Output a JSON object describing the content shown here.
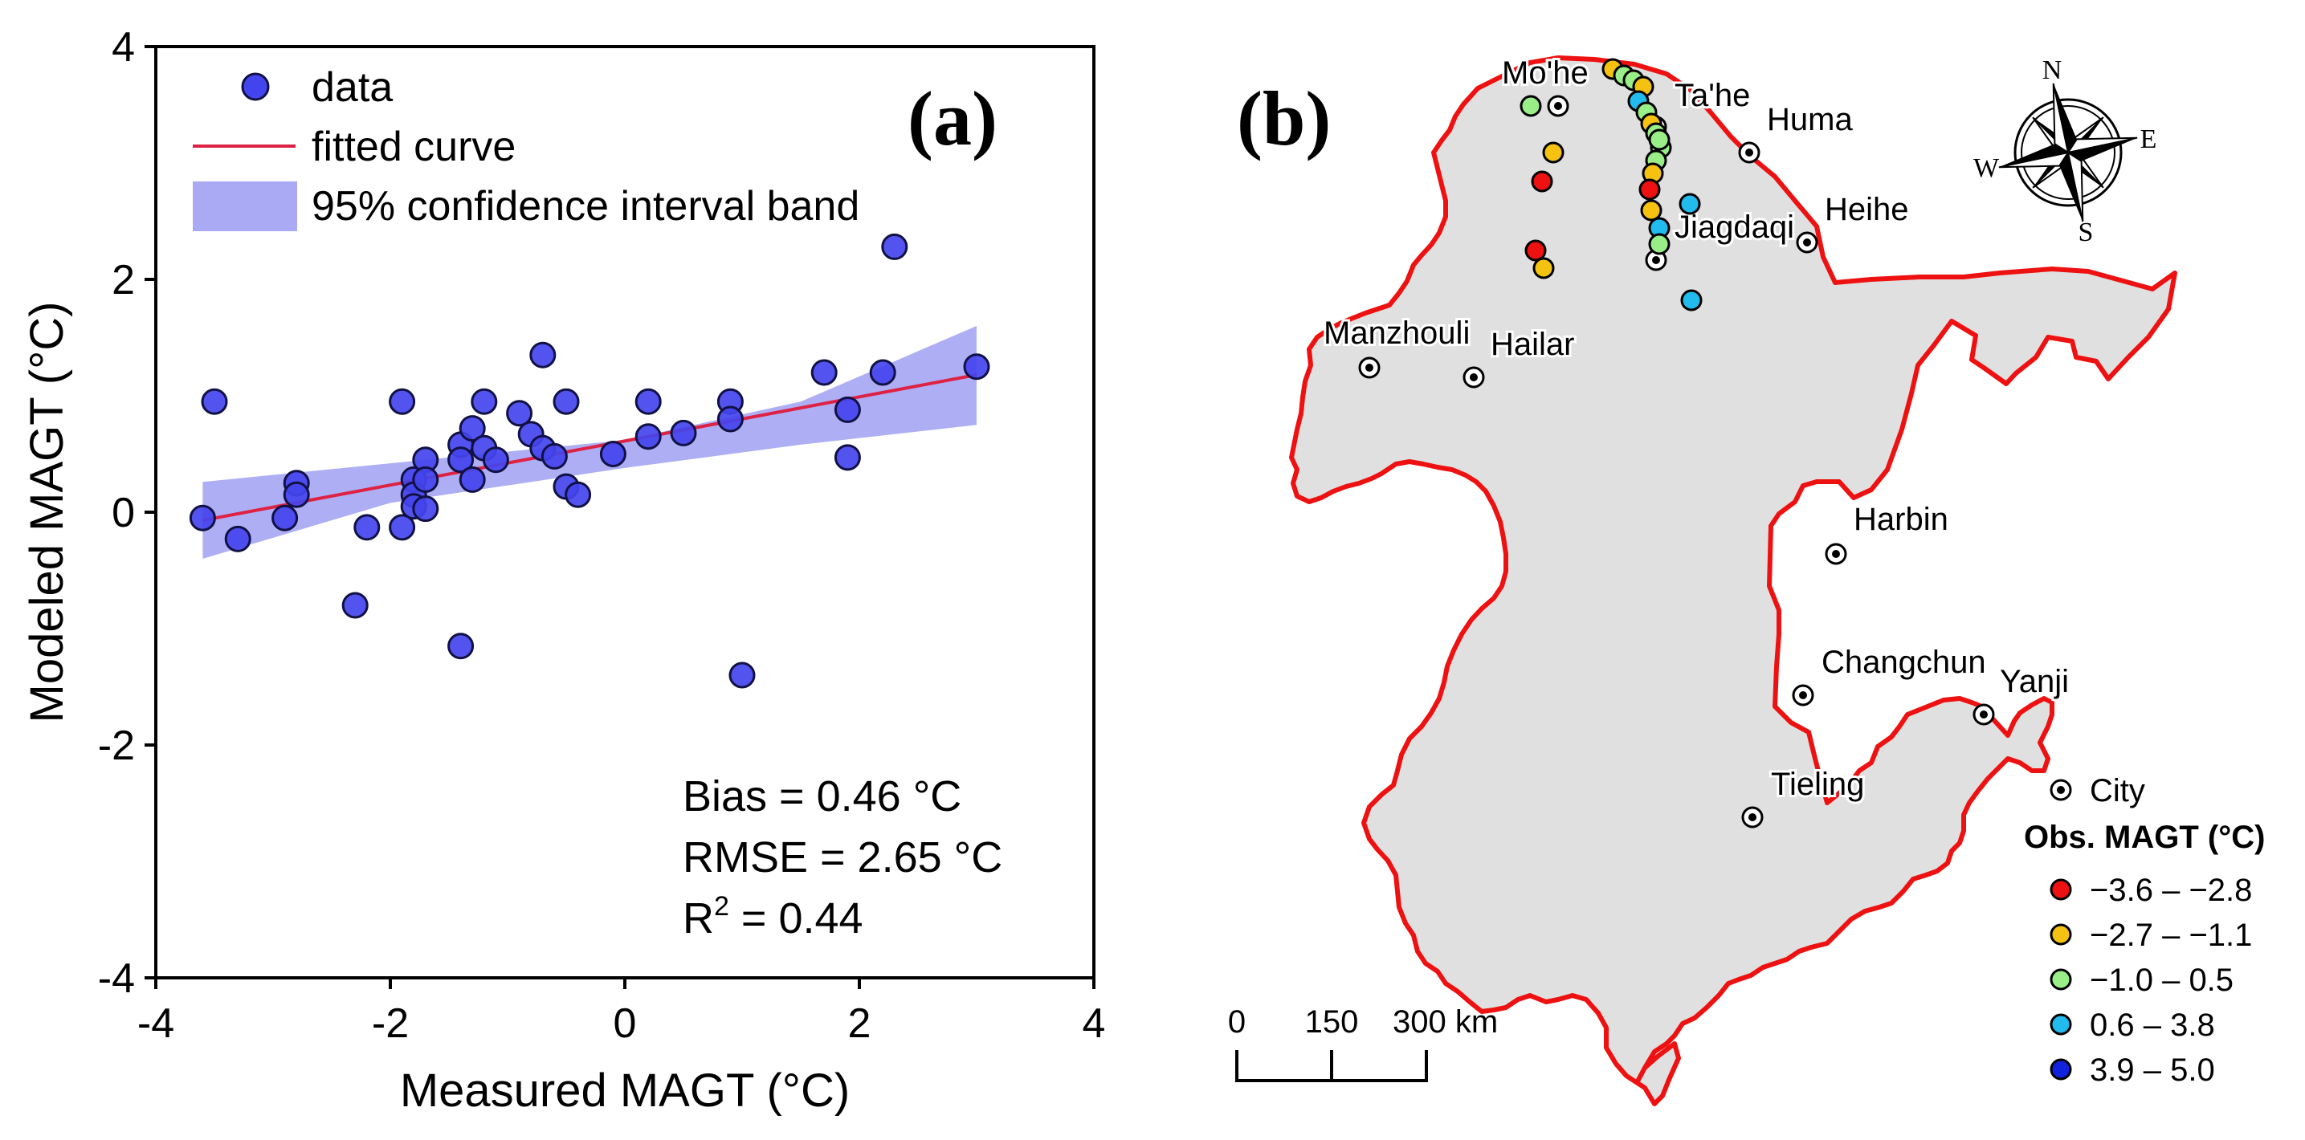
{
  "chart_data": [
    {
      "panel": "(a)",
      "type": "scatter",
      "xlabel": "Measured MAGT (°C)",
      "ylabel": "Modeled MAGT (°C)",
      "xlim": [
        -4,
        4
      ],
      "ylim": [
        -4,
        4
      ],
      "xticks": [
        -4,
        -2,
        0,
        2,
        4
      ],
      "yticks": [
        -4,
        -2,
        0,
        2,
        4
      ],
      "tick_labels_x": [
        "-4",
        "-2",
        "0",
        "2",
        "4"
      ],
      "tick_labels_y": [
        "-4",
        "-2",
        "0",
        "2",
        "4"
      ],
      "legend": {
        "placement": "top-left",
        "entries": [
          "data",
          "fitted curve",
          "95% confidence interval band"
        ]
      },
      "series": [
        {
          "name": "data",
          "color": "#3333ee",
          "points": [
            [
              -3.6,
              -0.05
            ],
            [
              -3.5,
              0.95
            ],
            [
              -3.3,
              -0.23
            ],
            [
              -2.9,
              -0.05
            ],
            [
              -2.8,
              0.25
            ],
            [
              -2.8,
              0.15
            ],
            [
              -2.3,
              -0.8
            ],
            [
              -2.2,
              -0.13
            ],
            [
              -1.9,
              0.95
            ],
            [
              -1.9,
              -0.13
            ],
            [
              -1.8,
              0.28
            ],
            [
              -1.8,
              0.15
            ],
            [
              -1.8,
              0.05
            ],
            [
              -1.7,
              0.45
            ],
            [
              -1.7,
              0.28
            ],
            [
              -1.7,
              0.03
            ],
            [
              -1.4,
              0.58
            ],
            [
              -1.4,
              0.45
            ],
            [
              -1.4,
              -1.15
            ],
            [
              -1.3,
              0.72
            ],
            [
              -1.3,
              0.28
            ],
            [
              -1.2,
              0.95
            ],
            [
              -1.2,
              0.55
            ],
            [
              -1.1,
              0.45
            ],
            [
              -0.9,
              0.85
            ],
            [
              -0.8,
              0.67
            ],
            [
              -0.7,
              1.35
            ],
            [
              -0.7,
              0.55
            ],
            [
              -0.6,
              0.48
            ],
            [
              -0.5,
              0.95
            ],
            [
              -0.5,
              0.22
            ],
            [
              -0.4,
              0.15
            ],
            [
              -0.1,
              0.5
            ],
            [
              0.2,
              0.95
            ],
            [
              0.2,
              0.65
            ],
            [
              0.5,
              0.68
            ],
            [
              0.9,
              0.95
            ],
            [
              0.9,
              0.8
            ],
            [
              1.0,
              -1.4
            ],
            [
              1.7,
              1.2
            ],
            [
              1.9,
              0.88
            ],
            [
              1.9,
              0.47
            ],
            [
              2.2,
              1.2
            ],
            [
              2.3,
              2.28
            ],
            [
              3.0,
              1.25
            ]
          ]
        },
        {
          "name": "fitted curve",
          "color": "#dd2244",
          "type": "line",
          "x": [
            -3.6,
            3.0
          ],
          "y": [
            -0.07,
            1.18
          ]
        },
        {
          "name": "95% confidence interval band",
          "color": "#8888ee",
          "type": "band",
          "x": [
            -3.6,
            -2.0,
            0.0,
            1.5,
            3.0
          ],
          "lower": [
            -0.4,
            0.08,
            0.38,
            0.58,
            0.75
          ],
          "upper": [
            0.26,
            0.42,
            0.62,
            0.95,
            1.6
          ]
        }
      ],
      "annotations": {
        "bias": "Bias = 0.46 °C",
        "rmse": "RMSE = 2.65 °C",
        "r2_prefix": "R",
        "r2_sup": "2",
        "r2_suffix": " = 0.44"
      }
    },
    {
      "panel": "(b)",
      "type": "map",
      "cities": [
        {
          "name": "Mo'he"
        },
        {
          "name": "Ta'he"
        },
        {
          "name": "Huma"
        },
        {
          "name": "Heihe"
        },
        {
          "name": "Jiagdaqi"
        },
        {
          "name": "Manzhouli"
        },
        {
          "name": "Hailar"
        },
        {
          "name": "Harbin"
        },
        {
          "name": "Changchun"
        },
        {
          "name": "Yanji"
        },
        {
          "name": "Tieling"
        }
      ],
      "compass": {
        "n": "N",
        "e": "E",
        "s": "S",
        "w": "W"
      },
      "scale_bar": {
        "labels": [
          "0",
          "150",
          "300 km"
        ]
      },
      "legend": {
        "city_label": "City",
        "title": "Obs. MAGT (°C)",
        "classes": [
          {
            "label": "−3.6 – −2.8",
            "color": "#ee1111"
          },
          {
            "label": "−2.7 – −1.1",
            "color": "#f5c211"
          },
          {
            "label": "−1.0 – 0.5",
            "color": "#99ee88"
          },
          {
            "label": "0.6 – 3.8",
            "color": "#22bbee"
          },
          {
            "label": "3.9 – 5.0",
            "color": "#1122dd"
          }
        ]
      },
      "colors": {
        "boundary": "#ee1111",
        "land": "#e0e0e0"
      }
    }
  ]
}
